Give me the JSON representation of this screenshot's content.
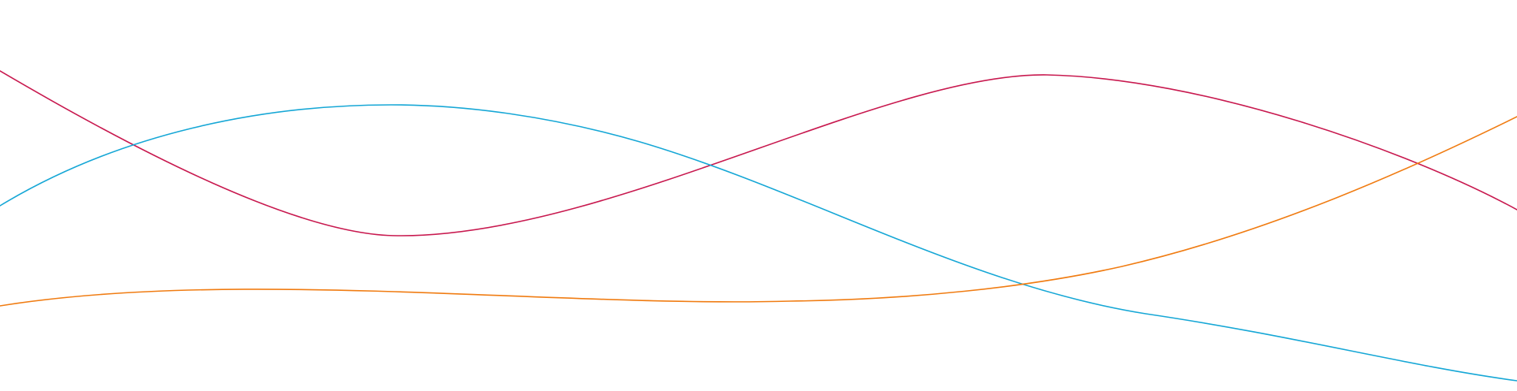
{
  "background": "#ffffff",
  "lines": [
    {
      "name": "crimson-wave-line",
      "color": "#c8194f"
    },
    {
      "name": "cyan-wave-line",
      "color": "#16a7d6"
    },
    {
      "name": "orange-wave-line",
      "color": "#f07c12"
    }
  ]
}
